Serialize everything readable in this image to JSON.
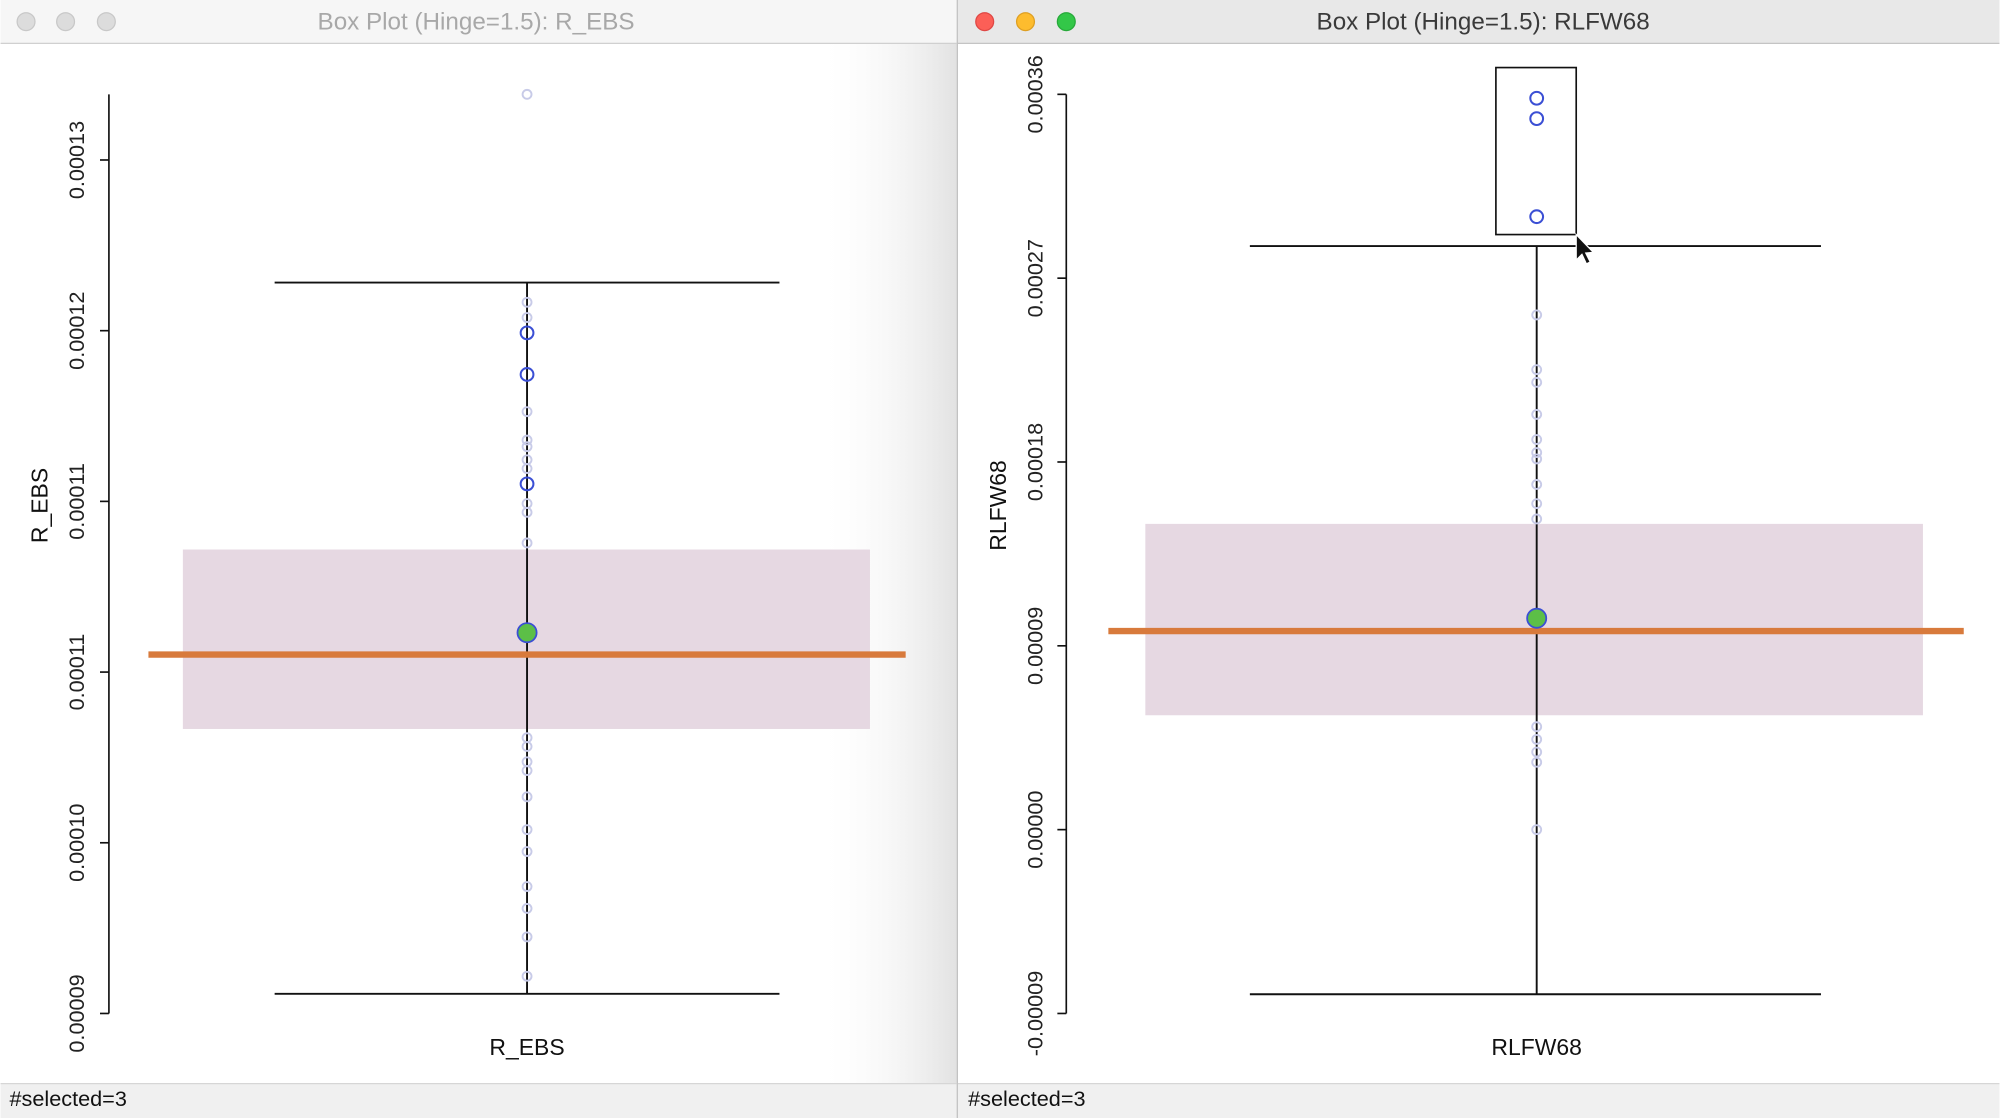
{
  "windows": [
    {
      "title": "Box Plot (Hinge=1.5): R_EBS",
      "status": "#selected=3",
      "chart_data": {
        "type": "box",
        "ylabel": "R_EBS",
        "categories": [
          "R_EBS"
        ],
        "ylim": [
          9e-05,
          0.000132
        ],
        "yticks": [
          {
            "value": 9e-05,
            "label": "0.00009"
          },
          {
            "value": 9.78e-05,
            "label": "0.00010"
          },
          {
            "value": 0.0001056,
            "label": "0.00011"
          },
          {
            "value": 0.0001134,
            "label": "0.00011"
          },
          {
            "value": 0.0001212,
            "label": "0.00012"
          },
          {
            "value": 0.000129,
            "label": "0.00013"
          }
        ],
        "whisker_low": 9.09e-05,
        "q1": 0.000103,
        "median": 0.0001074,
        "q3": 0.0001112,
        "whisker_high": 0.0001234,
        "mean": 0.0001064,
        "points": [
          0.000132,
          0.0001225,
          0.0001218,
          0.0001175,
          0.0001162,
          0.0001159,
          0.0001153,
          0.0001149,
          0.0001133,
          0.0001129,
          0.0001115,
          0.0001026,
          0.0001022,
          0.0001015,
          0.0001011,
          9.99e-05,
          9.84e-05,
          9.74e-05,
          9.58e-05,
          9.48e-05,
          9.35e-05,
          9.17e-05
        ],
        "selected": [
          0.0001211,
          0.0001192,
          0.0001142
        ],
        "box_color": "#e6d8e2",
        "mean_color": "#d87a3c",
        "median_color": "#5cbf47",
        "selected_color": "#3b4fd4",
        "point_color": "#c8cbe8"
      }
    },
    {
      "title": "Box Plot (Hinge=1.5): RLFW68",
      "status": "#selected=3",
      "chart_data": {
        "type": "box",
        "ylabel": "RLFW68",
        "categories": [
          "RLFW68"
        ],
        "ylim": [
          -9e-05,
          0.00036
        ],
        "yticks": [
          {
            "value": -9e-05,
            "label": "-0.00009"
          },
          {
            "value": 0,
            "label": "0.00000"
          },
          {
            "value": 9e-05,
            "label": "0.00009"
          },
          {
            "value": 0.00018,
            "label": "0.00018"
          },
          {
            "value": 0.00027,
            "label": "0.00027"
          },
          {
            "value": 0.00036,
            "label": "0.00036"
          }
        ],
        "whisker_low": -8.06e-05,
        "q1": 5.6e-05,
        "median": 0.0001035,
        "q3": 0.0001497,
        "whisker_high": 0.0002857,
        "mean": 9.72e-05,
        "points": [
          0.000252,
          0.0002252,
          0.000219,
          0.0002033,
          0.000191,
          0.0001846,
          0.0001815,
          0.000169,
          0.0001596,
          0.0001521,
          5.04e-05,
          4.42e-05,
          3.8e-05,
          3.3e-05,
          0
        ],
        "selected": [
          0.0003581,
          0.0003481,
          0.0003001
        ],
        "box_color": "#e6d8e2",
        "mean_color": "#d87a3c",
        "median_color": "#5cbf47",
        "selected_color": "#3b4fd4",
        "point_color": "#c8cbe8"
      }
    }
  ]
}
